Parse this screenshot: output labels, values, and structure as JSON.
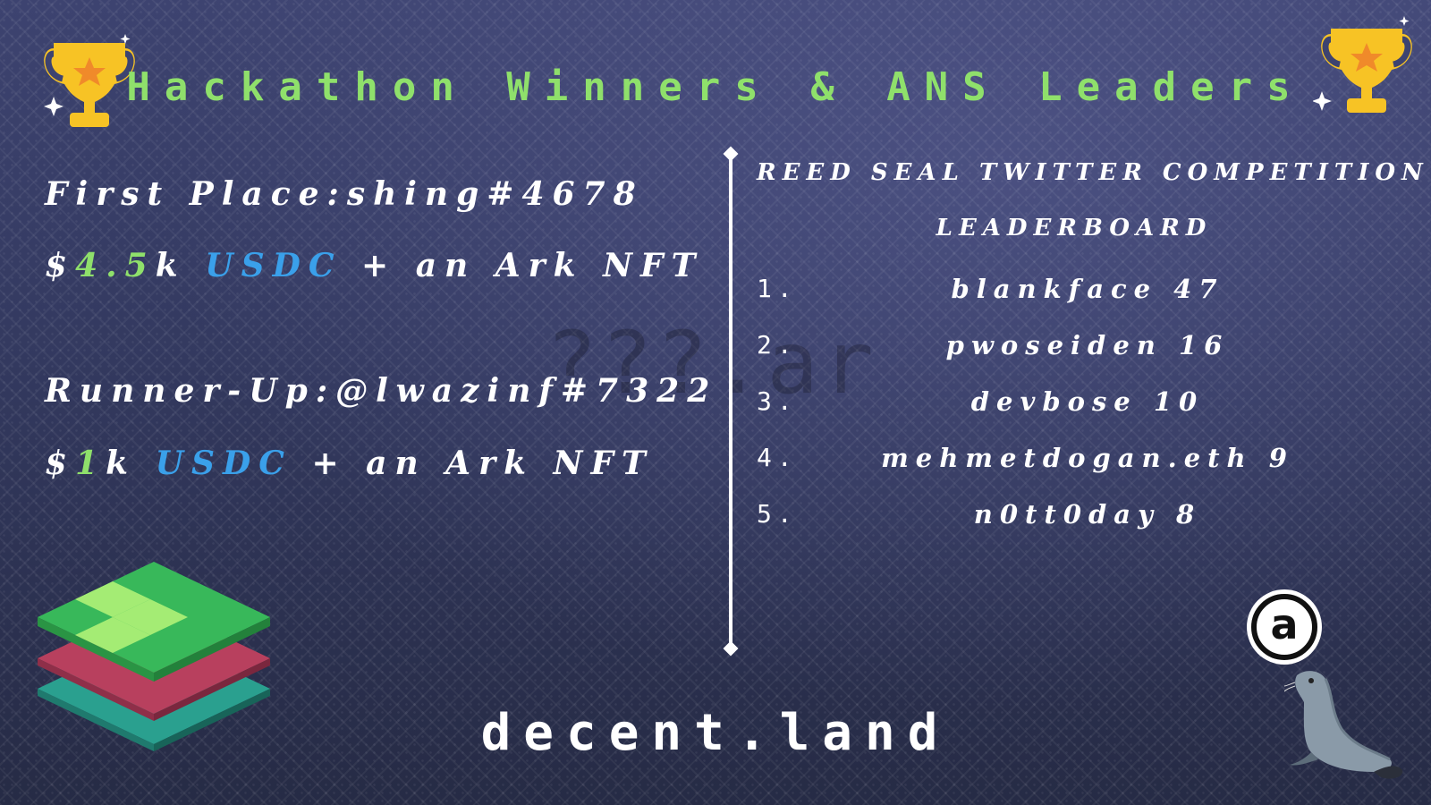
{
  "title": "Hackathon Winners & ANS Leaders",
  "watermark": "???.ar",
  "winners": {
    "first_label": "First Place:shing#4678",
    "first_prize_prefix": "$",
    "first_prize_amount": "4.5",
    "first_prize_unit": "k",
    "first_prize_token": "USDC",
    "first_prize_suffix": "+ an Ark NFT",
    "runner_label": "Runner-Up:@lwazinf#7322",
    "runner_prize_prefix": "$",
    "runner_prize_amount": "1",
    "runner_prize_unit": "k",
    "runner_prize_token": "USDC",
    "runner_prize_suffix": "+ an Ark NFT"
  },
  "leaderboard": {
    "heading_line1": "REED SEAL TWITTER COMPETITION",
    "heading_line2": "LEADERBOARD",
    "entries": [
      {
        "rank": "1.",
        "entry": "blankface 47"
      },
      {
        "rank": "2.",
        "entry": "pwoseiden 16"
      },
      {
        "rank": "3.",
        "entry": "devbose 10"
      },
      {
        "rank": "4.",
        "entry": "mehmetdogan.eth 9"
      },
      {
        "rank": "5.",
        "entry": "n0tt0day 8"
      }
    ]
  },
  "brand": "decent.land",
  "arweave_logo_letter": "a",
  "icons": {
    "trophy": "trophy-icon",
    "layers": "stacked-layers-logo",
    "arweave": "arweave-logo",
    "seal": "seal-illustration"
  },
  "colors": {
    "title_green": "#8fe06b",
    "usdc_blue": "#3aa0ea",
    "text_white": "#ffffff",
    "background": "#33395f",
    "trophy_gold": "#f7c325"
  }
}
